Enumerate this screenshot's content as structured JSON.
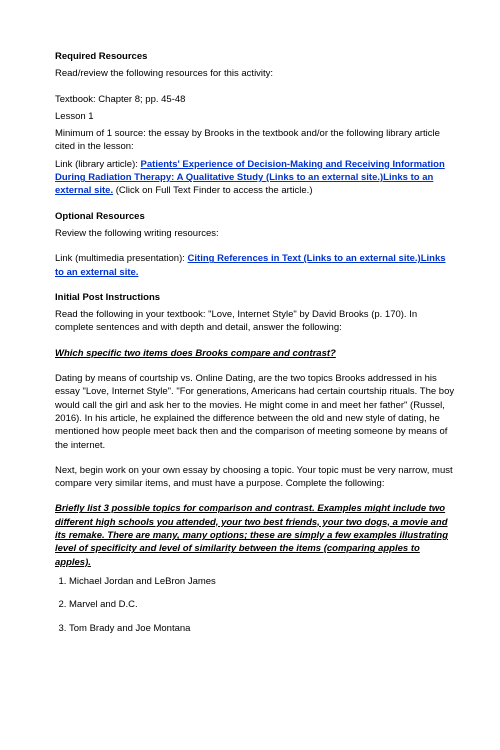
{
  "reqTitle": "Required Resources",
  "reqIntro": "Read/review the following resources for this activity:",
  "reqItem1": "Textbook: Chapter 8; pp. 45-48",
  "reqItem2": "Lesson 1",
  "reqItem3": "Minimum of 1 source: the essay by Brooks in the textbook and/or the following library article cited in the lesson:",
  "linkLibPrefix": "Link (library article): ",
  "linkLib": "Patients' Experience of Decision-Making and Receiving Information During Radiation Therapy: A Qualitative Study (Links to an external site.)Links to an external site.",
  "linkLibSuffix": " (Click on Full Text Finder to access the article.)",
  "optTitle": "Optional Resources",
  "optIntro": "Review the following writing resources:",
  "linkMultiPrefix": "Link (multimedia presentation): ",
  "linkMulti": "Citing References in Text (Links to an external site.)Links to an external site.",
  "initTitle": "Initial Post Instructions",
  "initIntro": "Read the following in your textbook: \"Love, Internet Style\" by David Brooks (p. 170). In complete sentences and with depth and detail, answer the following:",
  "q1": "Which specific two items does Brooks compare and contrast?",
  "para1": "Dating by means of courtship vs. Online Dating, are the two topics Brooks addressed in his essay \"Love, Internet Style\". \"For generations, Americans had certain courtship rituals. The boy would call the girl and ask her to the movies. He might come in and meet her father\" (Russel, 2016). In his article, he explained the difference between the old and new style of dating, he mentioned how people meet back then and the comparison of meeting someone by means of the internet.",
  "para2": "Next, begin work on your own essay by choosing a topic. Your topic must be very narrow, must compare very similar items, and must have a purpose. Complete the following:",
  "q2": "Briefly list 3 possible topics for comparison and contrast. Examples might include two different high schools you attended, your two best friends, your two dogs, a movie and its remake. There are many, many options; these are simply a few examples illustrating level of specificity and level of similarity between the items (comparing apples to apples).",
  "li1": "Michael Jordan and LeBron James",
  "li2": "Marvel and D.C.",
  "li3": "Tom Brady and Joe Montana"
}
